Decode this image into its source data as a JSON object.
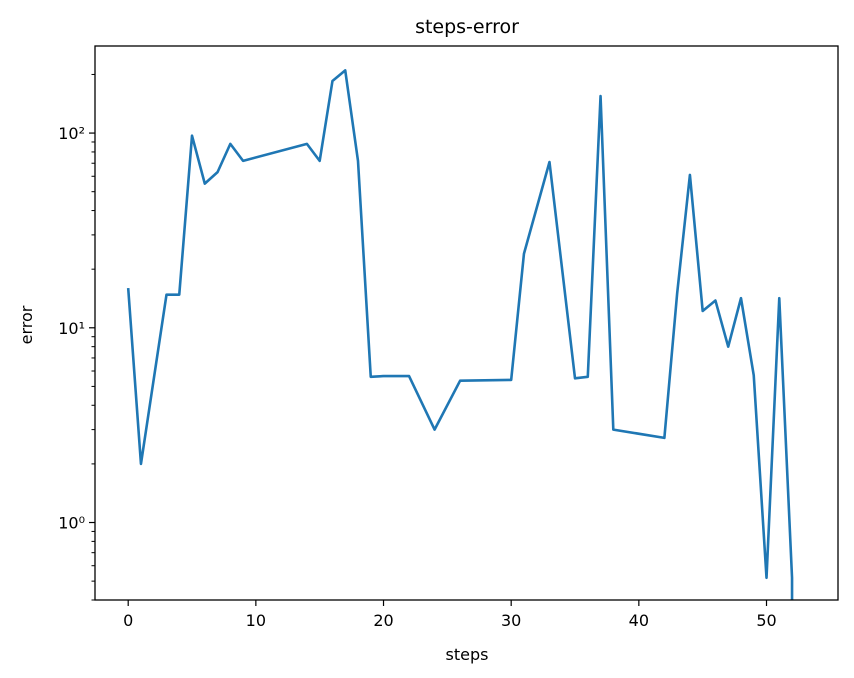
{
  "chart_data": {
    "type": "line",
    "title": "steps-error",
    "xlabel": "steps",
    "ylabel": "error",
    "xlim": [
      -2.6,
      55.6
    ],
    "ylim": [
      0.4,
      280
    ],
    "yscale": "log",
    "grid": false,
    "x_ticks": [
      0,
      10,
      20,
      30,
      40,
      50
    ],
    "x_tick_labels": [
      "0",
      "10",
      "20",
      "30",
      "40",
      "50"
    ],
    "y_ticks": [
      1,
      10,
      100
    ],
    "y_tick_labels": [
      "10⁰",
      "10¹",
      "10²"
    ],
    "series": [
      {
        "color": "#1f77b4",
        "x": [
          0,
          1,
          3,
          4,
          5,
          6,
          7,
          8,
          9,
          14,
          15,
          16,
          17,
          18,
          19,
          20,
          22,
          24,
          26,
          30,
          31,
          33,
          35,
          36,
          37,
          38,
          42,
          43,
          44,
          45,
          46,
          47,
          48,
          49,
          50,
          51,
          52,
          52
        ],
        "y": [
          16,
          2.0,
          14.8,
          14.8,
          97,
          55,
          63,
          88,
          72,
          88,
          72,
          185,
          210,
          72,
          5.6,
          5.65,
          5.65,
          3.0,
          5.35,
          5.4,
          24,
          71,
          5.5,
          5.6,
          155,
          3.0,
          2.72,
          15,
          61,
          12.2,
          13.8,
          8.0,
          14.2,
          5.7,
          0.52,
          14.2,
          0.52,
          0.4
        ]
      }
    ]
  }
}
